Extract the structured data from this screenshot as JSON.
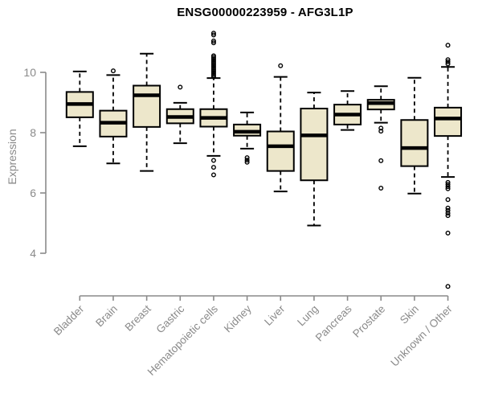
{
  "chart_data": {
    "type": "boxplot",
    "title": "ENSG00000223959 - AFG3L1P",
    "ylabel": "Expression",
    "xlabel": "",
    "yticks": [
      4,
      6,
      8,
      10
    ],
    "yaxis_range": [
      4,
      10
    ],
    "grid": false,
    "legend": "none",
    "categories": [
      "Bladder",
      "Brain",
      "Breast",
      "Gastric",
      "Hematopoietic cells",
      "Kidney",
      "Liver",
      "Lung",
      "Pancreas",
      "Prostate",
      "Skin",
      "Unknown / Other"
    ],
    "series": [
      {
        "name": "Bladder",
        "whisker_low": 7.55,
        "q1": 8.51,
        "median": 8.95,
        "q3": 9.35,
        "whisker_high": 10.03,
        "outliers": []
      },
      {
        "name": "Brain",
        "whisker_low": 6.98,
        "q1": 7.87,
        "median": 8.33,
        "q3": 8.73,
        "whisker_high": 9.91,
        "outliers": [
          10.05
        ]
      },
      {
        "name": "Breast",
        "whisker_low": 6.73,
        "q1": 8.19,
        "median": 9.24,
        "q3": 9.56,
        "whisker_high": 10.62,
        "outliers": []
      },
      {
        "name": "Gastric",
        "whisker_low": 7.65,
        "q1": 8.31,
        "median": 8.52,
        "q3": 8.78,
        "whisker_high": 8.99,
        "outliers": [
          9.51
        ]
      },
      {
        "name": "Hematopoietic cells",
        "whisker_low": 7.23,
        "q1": 8.2,
        "median": 8.49,
        "q3": 8.78,
        "whisker_high": 9.81,
        "outliers": [
          11.3,
          11.24,
          11.04,
          10.98,
          10.55,
          10.5,
          10.45,
          10.4,
          10.35,
          10.3,
          10.25,
          10.2,
          10.15,
          10.1,
          10.05,
          10.0,
          9.95,
          9.9,
          9.85,
          7.08,
          6.85,
          6.6
        ]
      },
      {
        "name": "Kidney",
        "whisker_low": 7.47,
        "q1": 7.9,
        "median": 8.03,
        "q3": 8.27,
        "whisker_high": 8.67,
        "outliers": [
          7.17,
          7.09,
          7.02
        ]
      },
      {
        "name": "Liver",
        "whisker_low": 6.05,
        "q1": 6.73,
        "median": 7.55,
        "q3": 8.04,
        "whisker_high": 9.85,
        "outliers": [
          10.22
        ]
      },
      {
        "name": "Lung",
        "whisker_low": 4.92,
        "q1": 6.42,
        "median": 7.91,
        "q3": 8.8,
        "whisker_high": 9.33,
        "outliers": []
      },
      {
        "name": "Pancreas",
        "whisker_low": 8.09,
        "q1": 8.27,
        "median": 8.6,
        "q3": 8.93,
        "whisker_high": 9.38,
        "outliers": []
      },
      {
        "name": "Prostate",
        "whisker_low": 8.33,
        "q1": 8.77,
        "median": 8.98,
        "q3": 9.09,
        "whisker_high": 9.54,
        "outliers": [
          8.15,
          8.05,
          7.07,
          6.16
        ]
      },
      {
        "name": "Skin",
        "whisker_low": 5.98,
        "q1": 6.89,
        "median": 7.49,
        "q3": 8.42,
        "whisker_high": 9.82,
        "outliers": []
      },
      {
        "name": "Unknown / Other",
        "whisker_low": 6.53,
        "q1": 7.89,
        "median": 8.47,
        "q3": 8.83,
        "whisker_high": 10.18,
        "outliers": [
          10.9,
          10.42,
          10.35,
          10.28,
          6.35,
          6.28,
          6.21,
          6.14,
          5.78,
          5.5,
          5.42,
          5.33,
          5.25,
          4.67,
          2.9
        ]
      }
    ],
    "colors": {
      "box_fill": "#ede7cb",
      "box_border": "#000000",
      "axis": "#8a8a8a",
      "tick_label": "#8a8a8a",
      "title": "#000000"
    }
  }
}
